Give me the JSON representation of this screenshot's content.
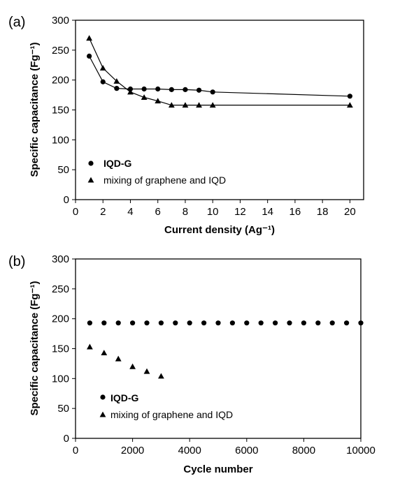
{
  "chart_data": [
    {
      "panel_label": "(a)",
      "type": "line",
      "xlabel": "Current density (Ag⁻¹)",
      "ylabel": "Specific capacitance (Fg⁻¹)",
      "xlim": [
        0,
        21
      ],
      "ylim": [
        0,
        300
      ],
      "xticks": [
        0,
        2,
        4,
        6,
        8,
        10,
        12,
        14,
        16,
        18,
        20
      ],
      "yticks": [
        0,
        50,
        100,
        150,
        200,
        250,
        300
      ],
      "grid": false,
      "legend": "bottom-left",
      "series": [
        {
          "name": "IQD-G",
          "marker": "circle",
          "line": true,
          "x": [
            1,
            2,
            3,
            4,
            5,
            6,
            7,
            8,
            9,
            10,
            20
          ],
          "y": [
            240,
            197,
            186,
            185,
            185,
            185,
            184,
            184,
            183,
            180,
            173
          ]
        },
        {
          "name": "mixing of graphene and IQD",
          "marker": "triangle",
          "line": true,
          "x": [
            1,
            2,
            3,
            4,
            5,
            6,
            7,
            8,
            9,
            10,
            20
          ],
          "y": [
            270,
            220,
            198,
            180,
            171,
            165,
            158,
            158,
            158,
            158,
            158
          ]
        }
      ]
    },
    {
      "panel_label": "(b)",
      "type": "scatter",
      "xlabel": "Cycle number",
      "ylabel": "Specific capacitance (Fg⁻¹)",
      "xlim": [
        0,
        10000
      ],
      "ylim": [
        0,
        300
      ],
      "xticks": [
        0,
        2000,
        4000,
        6000,
        8000,
        10000
      ],
      "yticks": [
        0,
        50,
        100,
        150,
        200,
        250,
        300
      ],
      "grid": false,
      "legend": "bottom-left",
      "series": [
        {
          "name": "IQD-G",
          "marker": "circle",
          "line": false,
          "x": [
            500,
            1000,
            1500,
            2000,
            2500,
            3000,
            3500,
            4000,
            4500,
            5000,
            5500,
            6000,
            6500,
            7000,
            7500,
            8000,
            8500,
            9000,
            9500,
            10000
          ],
          "y": [
            193,
            193,
            193,
            193,
            193,
            193,
            193,
            193,
            193,
            193,
            193,
            193,
            193,
            193,
            193,
            193,
            193,
            193,
            193,
            193
          ]
        },
        {
          "name": "mixing of graphene and IQD",
          "marker": "triangle",
          "line": false,
          "x": [
            500,
            1000,
            1500,
            2000,
            2500,
            3000
          ],
          "y": [
            153,
            143,
            133,
            120,
            112,
            104
          ]
        }
      ]
    }
  ]
}
